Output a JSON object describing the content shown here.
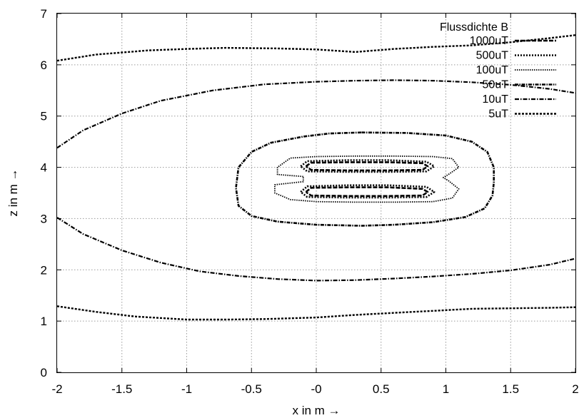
{
  "chart_data": {
    "type": "line",
    "title": "",
    "xlabel": "x in m →",
    "ylabel": "z in m →",
    "xlim": [
      -2,
      2
    ],
    "ylim": [
      0,
      7
    ],
    "xticks": [
      -2,
      -1.5,
      -1,
      -0.5,
      0,
      0.5,
      1,
      1.5,
      2
    ],
    "xtick_labels": [
      "-2",
      "-1.5",
      "-1",
      "-0.5",
      "-0",
      "0.5",
      "1",
      "1.5",
      "2"
    ],
    "yticks": [
      0,
      1,
      2,
      3,
      4,
      5,
      6,
      7
    ],
    "ytick_labels": [
      "0",
      "1",
      "2",
      "3",
      "4",
      "5",
      "6",
      "7"
    ],
    "grid": true,
    "legend": {
      "title": "Flussdichte B",
      "placement": "top-right"
    },
    "series": [
      {
        "name": "1000uT",
        "dash": "6 2",
        "width": 2.6,
        "paths": [
          [
            [
              -0.08,
              4.02
            ],
            [
              -0.04,
              4.09
            ],
            [
              0.25,
              4.1
            ],
            [
              0.55,
              4.1
            ],
            [
              0.82,
              4.08
            ],
            [
              0.86,
              4.02
            ],
            [
              0.82,
              3.95
            ],
            [
              0.55,
              3.94
            ],
            [
              0.25,
              3.94
            ],
            [
              -0.04,
              3.95
            ],
            [
              -0.08,
              4.02
            ]
          ],
          [
            [
              -0.08,
              3.52
            ],
            [
              -0.04,
              3.6
            ],
            [
              0.25,
              3.61
            ],
            [
              0.55,
              3.61
            ],
            [
              0.82,
              3.58
            ],
            [
              0.86,
              3.52
            ],
            [
              0.82,
              3.45
            ],
            [
              0.55,
              3.44
            ],
            [
              0.25,
              3.44
            ],
            [
              -0.04,
              3.45
            ],
            [
              -0.08,
              3.52
            ]
          ]
        ]
      },
      {
        "name": "500uT",
        "dash": "2 2",
        "width": 2.6,
        "paths": [
          [
            [
              -0.12,
              4.02
            ],
            [
              -0.07,
              4.12
            ],
            [
              0.25,
              4.14
            ],
            [
              0.55,
              4.14
            ],
            [
              0.85,
              4.11
            ],
            [
              0.91,
              4.02
            ],
            [
              0.85,
              3.92
            ],
            [
              0.55,
              3.91
            ],
            [
              0.25,
              3.91
            ],
            [
              -0.07,
              3.92
            ],
            [
              -0.12,
              4.02
            ]
          ],
          [
            [
              -0.12,
              3.52
            ],
            [
              -0.07,
              3.63
            ],
            [
              0.25,
              3.65
            ],
            [
              0.55,
              3.65
            ],
            [
              0.85,
              3.62
            ],
            [
              0.91,
              3.52
            ],
            [
              0.85,
              3.42
            ],
            [
              0.55,
              3.41
            ],
            [
              0.25,
              3.41
            ],
            [
              -0.07,
              3.42
            ],
            [
              -0.12,
              3.52
            ]
          ]
        ]
      },
      {
        "name": "100uT",
        "dash": "1.5 1.5",
        "width": 1.8,
        "paths": [
          [
            [
              -0.1,
              3.82
            ],
            [
              -0.3,
              3.86
            ],
            [
              -0.3,
              4.0
            ],
            [
              -0.2,
              4.18
            ],
            [
              0.0,
              4.21
            ],
            [
              0.3,
              4.22
            ],
            [
              0.6,
              4.22
            ],
            [
              0.9,
              4.21
            ],
            [
              1.05,
              4.17
            ],
            [
              1.1,
              4.0
            ],
            [
              1.02,
              3.86
            ],
            [
              0.98,
              3.8
            ],
            [
              1.02,
              3.74
            ],
            [
              1.1,
              3.58
            ],
            [
              1.05,
              3.4
            ],
            [
              0.9,
              3.33
            ],
            [
              0.6,
              3.32
            ],
            [
              0.3,
              3.32
            ],
            [
              0.0,
              3.33
            ],
            [
              -0.2,
              3.37
            ],
            [
              -0.32,
              3.5
            ],
            [
              -0.32,
              3.66
            ],
            [
              -0.1,
              3.72
            ],
            [
              -0.1,
              3.82
            ]
          ]
        ]
      },
      {
        "name": "50uT",
        "dash": "5 1.5 1.5 1.5",
        "width": 2.6,
        "paths": [
          [
            [
              0.35,
              4.68
            ],
            [
              0.7,
              4.67
            ],
            [
              1.0,
              4.62
            ],
            [
              1.2,
              4.5
            ],
            [
              1.32,
              4.3
            ],
            [
              1.37,
              4.0
            ],
            [
              1.37,
              3.7
            ],
            [
              1.36,
              3.45
            ],
            [
              1.3,
              3.2
            ],
            [
              1.15,
              3.03
            ],
            [
              0.9,
              2.93
            ],
            [
              0.6,
              2.88
            ],
            [
              0.35,
              2.86
            ],
            [
              0.0,
              2.88
            ],
            [
              -0.3,
              2.94
            ],
            [
              -0.5,
              3.05
            ],
            [
              -0.6,
              3.25
            ],
            [
              -0.62,
              3.6
            ],
            [
              -0.6,
              4.0
            ],
            [
              -0.5,
              4.3
            ],
            [
              -0.35,
              4.48
            ],
            [
              -0.1,
              4.6
            ],
            [
              0.1,
              4.66
            ],
            [
              0.35,
              4.68
            ]
          ]
        ]
      },
      {
        "name": "10uT",
        "dash": "6 2 1.5 2",
        "width": 2.2,
        "paths": [
          [
            [
              -2.0,
              4.38
            ],
            [
              -1.8,
              4.72
            ],
            [
              -1.5,
              5.05
            ],
            [
              -1.2,
              5.3
            ],
            [
              -0.8,
              5.5
            ],
            [
              -0.4,
              5.62
            ],
            [
              0.0,
              5.67
            ],
            [
              0.3,
              5.69
            ],
            [
              0.6,
              5.7
            ],
            [
              0.9,
              5.69
            ],
            [
              1.2,
              5.66
            ],
            [
              1.5,
              5.61
            ],
            [
              1.8,
              5.53
            ],
            [
              2.0,
              5.45
            ]
          ],
          [
            [
              -2.0,
              3.02
            ],
            [
              -1.8,
              2.7
            ],
            [
              -1.5,
              2.38
            ],
            [
              -1.2,
              2.14
            ],
            [
              -0.9,
              1.97
            ],
            [
              -0.6,
              1.88
            ],
            [
              -0.3,
              1.82
            ],
            [
              0.0,
              1.79
            ],
            [
              0.3,
              1.8
            ],
            [
              0.6,
              1.83
            ],
            [
              0.9,
              1.87
            ],
            [
              1.2,
              1.92
            ],
            [
              1.5,
              1.99
            ],
            [
              1.8,
              2.1
            ],
            [
              2.0,
              2.22
            ]
          ]
        ]
      },
      {
        "name": "5uT",
        "dash": "3 2",
        "width": 2.4,
        "paths": [
          [
            [
              -2.0,
              6.08
            ],
            [
              -1.7,
              6.2
            ],
            [
              -1.3,
              6.28
            ],
            [
              -1.0,
              6.31
            ],
            [
              -0.7,
              6.33
            ],
            [
              -0.3,
              6.32
            ],
            [
              0.0,
              6.3
            ],
            [
              0.3,
              6.25
            ],
            [
              0.6,
              6.31
            ],
            [
              0.9,
              6.35
            ],
            [
              1.2,
              6.38
            ],
            [
              1.5,
              6.44
            ],
            [
              1.8,
              6.52
            ],
            [
              2.0,
              6.58
            ]
          ],
          [
            [
              -2.0,
              1.29
            ],
            [
              -1.7,
              1.18
            ],
            [
              -1.4,
              1.09
            ],
            [
              -1.0,
              1.03
            ],
            [
              -0.7,
              1.03
            ],
            [
              -0.4,
              1.04
            ],
            [
              0.0,
              1.07
            ],
            [
              0.3,
              1.12
            ],
            [
              0.6,
              1.16
            ],
            [
              0.9,
              1.2
            ],
            [
              1.2,
              1.24
            ],
            [
              1.5,
              1.25
            ],
            [
              1.8,
              1.26
            ],
            [
              2.0,
              1.27
            ]
          ]
        ]
      }
    ]
  }
}
